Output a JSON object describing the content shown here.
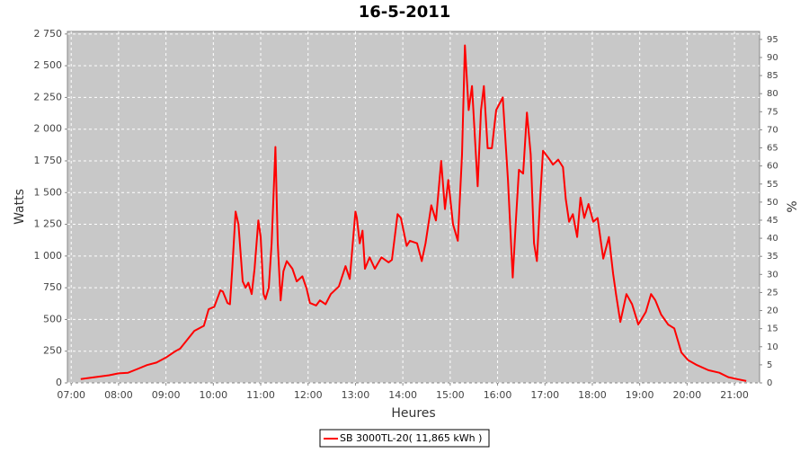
{
  "chart_data": {
    "type": "line",
    "title": "16-5-2011",
    "x_label": "Heures",
    "y_label": "Watts",
    "y2_label": "%",
    "x": [
      7.2,
      7.5,
      7.8,
      8.0,
      8.2,
      8.4,
      8.6,
      8.8,
      9.0,
      9.2,
      9.3,
      9.45,
      9.6,
      9.8,
      9.9,
      10.02,
      10.15,
      10.2,
      10.3,
      10.35,
      10.4,
      10.47,
      10.53,
      10.62,
      10.68,
      10.74,
      10.81,
      10.87,
      10.95,
      11.0,
      11.06,
      11.1,
      11.17,
      11.23,
      11.31,
      11.36,
      11.42,
      11.48,
      11.55,
      11.67,
      11.76,
      11.88,
      11.97,
      12.04,
      12.17,
      12.25,
      12.37,
      12.48,
      12.65,
      12.79,
      12.88,
      13.0,
      13.03,
      13.09,
      13.15,
      13.2,
      13.3,
      13.41,
      13.55,
      13.7,
      13.77,
      13.89,
      13.96,
      14.08,
      14.15,
      14.3,
      14.4,
      14.48,
      14.6,
      14.7,
      14.81,
      14.89,
      14.96,
      15.06,
      15.16,
      15.25,
      15.31,
      15.39,
      15.46,
      15.58,
      15.65,
      15.71,
      15.79,
      15.88,
      15.97,
      16.11,
      16.22,
      16.32,
      16.39,
      16.45,
      16.54,
      16.62,
      16.7,
      16.77,
      16.83,
      16.89,
      16.96,
      17.08,
      17.17,
      17.28,
      17.38,
      17.44,
      17.51,
      17.59,
      17.68,
      17.75,
      17.83,
      17.92,
      18.02,
      18.11,
      18.23,
      18.35,
      18.44,
      18.5,
      18.59,
      18.72,
      18.84,
      18.97,
      19.13,
      19.24,
      19.33,
      19.45,
      19.6,
      19.73,
      19.88,
      20.02,
      20.21,
      20.45,
      20.68,
      20.87,
      21.06,
      21.25
    ],
    "series": [
      {
        "name": "SB 3000TL-20( 11,865 kWh  )",
        "color": "#ff0000",
        "values": [
          30,
          45,
          60,
          75,
          80,
          110,
          140,
          160,
          200,
          250,
          270,
          340,
          410,
          450,
          580,
          600,
          730,
          720,
          630,
          620,
          900,
          1350,
          1250,
          800,
          750,
          790,
          700,
          900,
          1280,
          1150,
          700,
          660,
          750,
          1100,
          1860,
          1100,
          650,
          880,
          960,
          900,
          800,
          840,
          740,
          630,
          610,
          650,
          620,
          700,
          760,
          920,
          820,
          1350,
          1300,
          1100,
          1200,
          900,
          990,
          900,
          990,
          950,
          970,
          1330,
          1300,
          1080,
          1120,
          1100,
          960,
          1100,
          1400,
          1280,
          1750,
          1370,
          1600,
          1250,
          1120,
          1800,
          2660,
          2150,
          2340,
          1550,
          2150,
          2340,
          1850,
          1850,
          2150,
          2250,
          1600,
          830,
          1300,
          1680,
          1650,
          2130,
          1800,
          1100,
          960,
          1400,
          1830,
          1770,
          1720,
          1760,
          1700,
          1450,
          1270,
          1330,
          1150,
          1460,
          1300,
          1410,
          1270,
          1300,
          980,
          1150,
          860,
          700,
          480,
          700,
          620,
          460,
          560,
          700,
          650,
          540,
          460,
          430,
          240,
          180,
          140,
          100,
          80,
          45,
          30,
          15
        ]
      }
    ],
    "xlim": [
      6.92,
      21.53
    ],
    "xticks": [
      {
        "value": 7,
        "label": "07:00"
      },
      {
        "value": 8,
        "label": "08:00"
      },
      {
        "value": 9,
        "label": "09:00"
      },
      {
        "value": 10,
        "label": "10:00"
      },
      {
        "value": 11,
        "label": "11:00"
      },
      {
        "value": 12,
        "label": "12:00"
      },
      {
        "value": 13,
        "label": "13:00"
      },
      {
        "value": 14,
        "label": "14:00"
      },
      {
        "value": 15,
        "label": "15:00"
      },
      {
        "value": 16,
        "label": "16:00"
      },
      {
        "value": 17,
        "label": "17:00"
      },
      {
        "value": 18,
        "label": "18:00"
      },
      {
        "value": 19,
        "label": "19:00"
      },
      {
        "value": 20,
        "label": "20:00"
      },
      {
        "value": 21,
        "label": "21:00"
      }
    ],
    "ylim": [
      0,
      2770
    ],
    "yticks": [
      0,
      250,
      500,
      750,
      {
        "value": 1000,
        "label": "1 000"
      },
      {
        "value": 1250,
        "label": "1 250"
      },
      {
        "value": 1500,
        "label": "1 500"
      },
      {
        "value": 1750,
        "label": "1 750"
      },
      {
        "value": 2000,
        "label": "2 000"
      },
      {
        "value": 2250,
        "label": "2 250"
      },
      {
        "value": 2500,
        "label": "2 500"
      },
      {
        "value": 2750,
        "label": "2 750"
      }
    ],
    "y2lim": [
      0,
      97.2
    ],
    "y2ticks": [
      0,
      5,
      10,
      15,
      20,
      25,
      30,
      35,
      40,
      45,
      50,
      55,
      60,
      65,
      70,
      75,
      80,
      85,
      90,
      95
    ],
    "grid": true
  }
}
